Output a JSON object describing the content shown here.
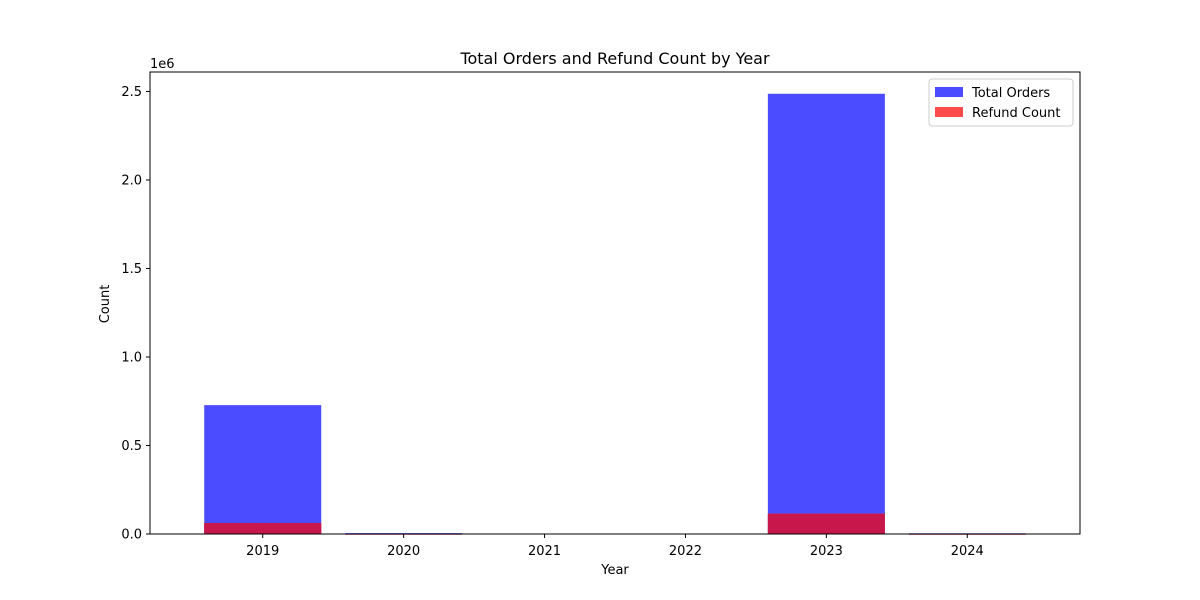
{
  "chart_data": {
    "type": "bar",
    "title": "Total Orders and Refund Count by Year",
    "xlabel": "Year",
    "ylabel": "Count",
    "y_offset_label": "1e6",
    "categories": [
      "2019",
      "2020",
      "2021",
      "2022",
      "2023",
      "2024"
    ],
    "series": [
      {
        "name": "Total Orders",
        "color": "#4B4BFF",
        "values": [
          728000,
          5000,
          0,
          0,
          2487000,
          4000
        ]
      },
      {
        "name": "Refund Count",
        "color": "#FF4B4B",
        "values": [
          62000,
          1000,
          0,
          0,
          115000,
          800
        ]
      }
    ],
    "ylim": [
      0,
      2610000
    ],
    "yticks": [
      0,
      500000,
      1000000,
      1500000,
      2000000,
      2500000
    ],
    "ytick_labels": [
      "0.0",
      "0.5",
      "1.0",
      "1.5",
      "2.0",
      "2.5"
    ],
    "overlap_color": "#C8174B",
    "legend_position": "upper-right",
    "grid": false
  }
}
